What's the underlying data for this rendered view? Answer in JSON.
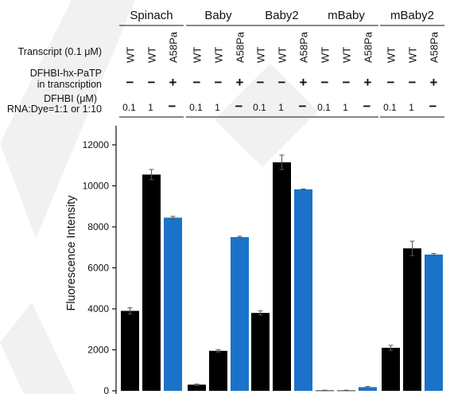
{
  "chart_data": {
    "type": "bar",
    "ylabel": "Fluorescence Intensity",
    "ylim": [
      0,
      12000
    ],
    "yticks": [
      0,
      2000,
      4000,
      6000,
      8000,
      10000,
      12000
    ],
    "grid": false,
    "groups": [
      "Spinach",
      "Baby",
      "Baby2",
      "mBaby",
      "mBaby2"
    ],
    "row_labels": {
      "transcript": "Transcript (0.1 μM)",
      "pa_line1": "DFHBI-hx-PaTP",
      "pa_line2": "in transcription",
      "dfhbi_line1": "DFHBI (μM)",
      "dfhbi_line2": "RNA:Dye=1:1 or 1:10"
    },
    "conditions": [
      {
        "transcript": "WT",
        "pa": "−",
        "dfhbi": "0.1",
        "color": "#000000"
      },
      {
        "transcript": "WT",
        "pa": "−",
        "dfhbi": "1",
        "color": "#000000"
      },
      {
        "transcript": "A58Pa",
        "pa": "+",
        "dfhbi": "−",
        "color": "#1a73c8"
      }
    ],
    "series": [
      {
        "group": "Spinach",
        "values": [
          3900,
          10550,
          8450
        ],
        "errors": [
          150,
          250,
          60
        ]
      },
      {
        "group": "Baby",
        "values": [
          300,
          1950,
          7500
        ],
        "errors": [
          30,
          60,
          40
        ]
      },
      {
        "group": "Baby2",
        "values": [
          3800,
          11150,
          9830
        ],
        "errors": [
          100,
          350,
          20
        ]
      },
      {
        "group": "mBaby",
        "values": [
          20,
          20,
          180
        ],
        "errors": [
          10,
          10,
          30
        ]
      },
      {
        "group": "mBaby2",
        "values": [
          2100,
          6950,
          6650
        ],
        "errors": [
          120,
          350,
          50
        ]
      }
    ]
  }
}
